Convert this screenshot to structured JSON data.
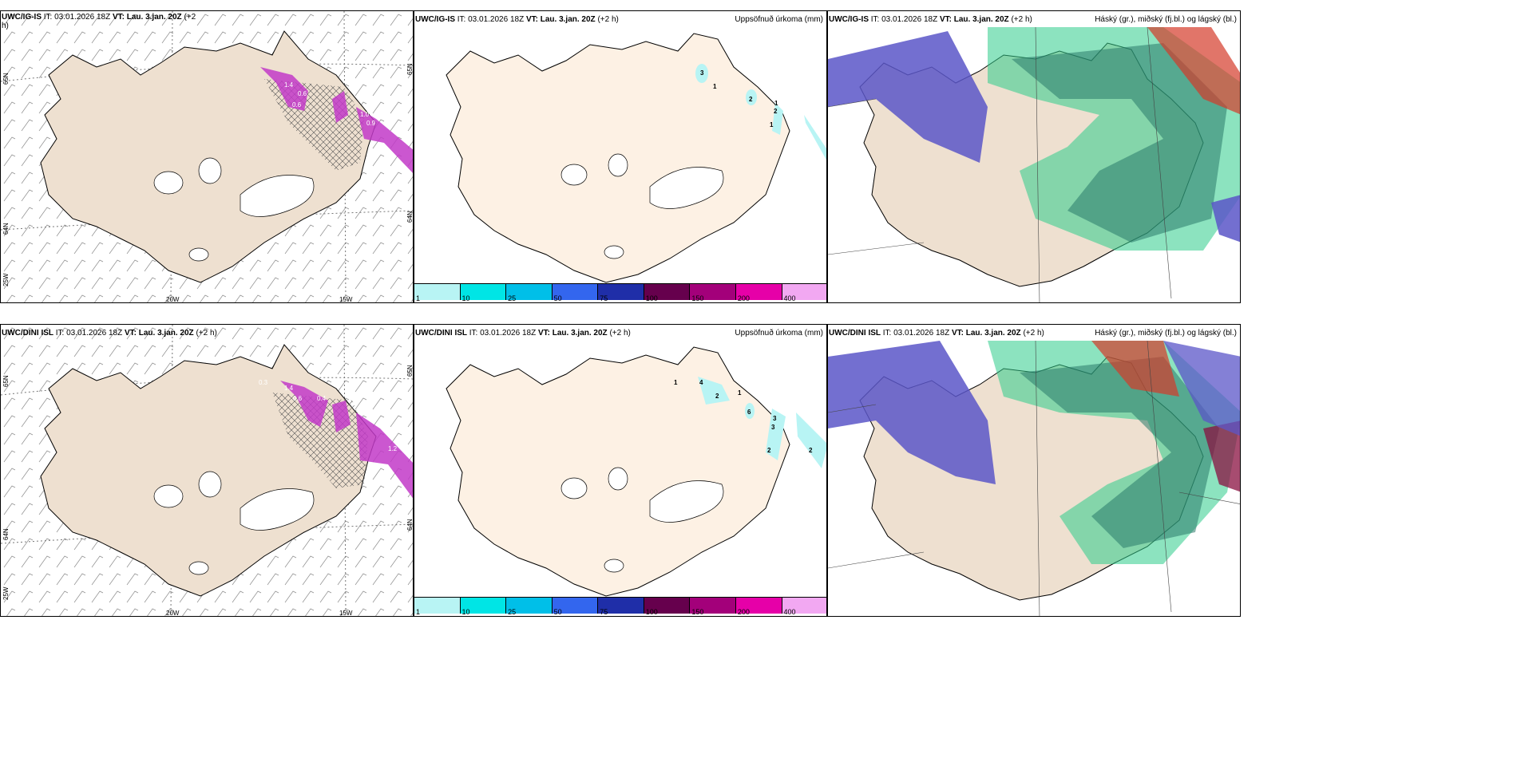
{
  "panels": {
    "top_left": {
      "model": "UWC/IG-IS",
      "it_label": "IT:",
      "it": "03.01.2026 18Z",
      "vt_label": "VT:",
      "vt": "Lau. 3.jan. 20Z",
      "lead": "(+2",
      "lead2": "h)"
    },
    "top_mid": {
      "model": "UWC/IG-IS",
      "it_label": "IT:",
      "it": "03.01.2026 18Z",
      "vt_label": "VT:",
      "vt": "Lau. 3.jan. 20Z",
      "lead": "(+2 h)",
      "right": "Uppsöfnuð úrkoma (mm)"
    },
    "top_right": {
      "model": "UWC/IG-IS",
      "it_label": "IT:",
      "it": "03.01.2026 18Z",
      "vt_label": "VT:",
      "vt": "Lau. 3.jan. 20Z",
      "lead": "(+2 h)",
      "right": "Háský (gr.), miðský (fj.bl.) og lágský (bl.)"
    },
    "bot_left": {
      "model": "UWC/DINI ISL",
      "it_label": "IT:",
      "it": "03.01.2026 18Z",
      "vt_label": "VT:",
      "vt": "Lau. 3.jan. 20Z",
      "lead": "(+2 h)"
    },
    "bot_mid": {
      "model": "UWC/DINI ISL",
      "it_label": "IT:",
      "it": "03.01.2026 18Z",
      "vt_label": "VT:",
      "vt": "Lau. 3.jan. 20Z",
      "lead": "(+2 h)",
      "right": "Uppsöfnuð úrkoma (mm)"
    },
    "bot_right": {
      "model": "UWC/DINI ISL",
      "it_label": "IT:",
      "it": "03.01.2026 18Z",
      "vt_label": "VT:",
      "vt": "Lau. 3.jan. 20Z",
      "lead": "(+2 h)",
      "right": "Háský (gr.), miðský (fj.bl.) og lágský (bl.)"
    }
  },
  "axes": {
    "lon1": "20W",
    "lon2": "15W",
    "lat1": "65N",
    "lat2": "64N",
    "lon0": "25W"
  },
  "colorbar": {
    "ticks": [
      "1",
      "10",
      "25",
      "50",
      "75",
      "100",
      "150",
      "200",
      "400"
    ],
    "colors": [
      "#b8f4f4",
      "#00e5e5",
      "#00bfe8",
      "#3366ee",
      "#1f2ea8",
      "#66004d",
      "#a3007a",
      "#e600a8",
      "#f2a8f2"
    ]
  },
  "precip_labels_top": [
    "3",
    "1",
    "2",
    "1",
    "2",
    "1"
  ],
  "precip_labels_bot": [
    "1",
    "4",
    "2",
    "1",
    "6",
    "3",
    "3",
    "2",
    "2"
  ],
  "wind_values_top": [
    "1.4",
    "0.6",
    "0.6",
    "1.0",
    "0.9"
  ],
  "wind_values_bot": [
    "1.4",
    "0.6",
    "0.4",
    "0.3",
    "1.2"
  ],
  "colors": {
    "land_grey": "#eee0d0",
    "land_peach": "#fdf1e4",
    "magenta": "#c23ac8",
    "high": "#2ecc8a",
    "mid": "#5b56c8",
    "low": "#d43a2a"
  }
}
